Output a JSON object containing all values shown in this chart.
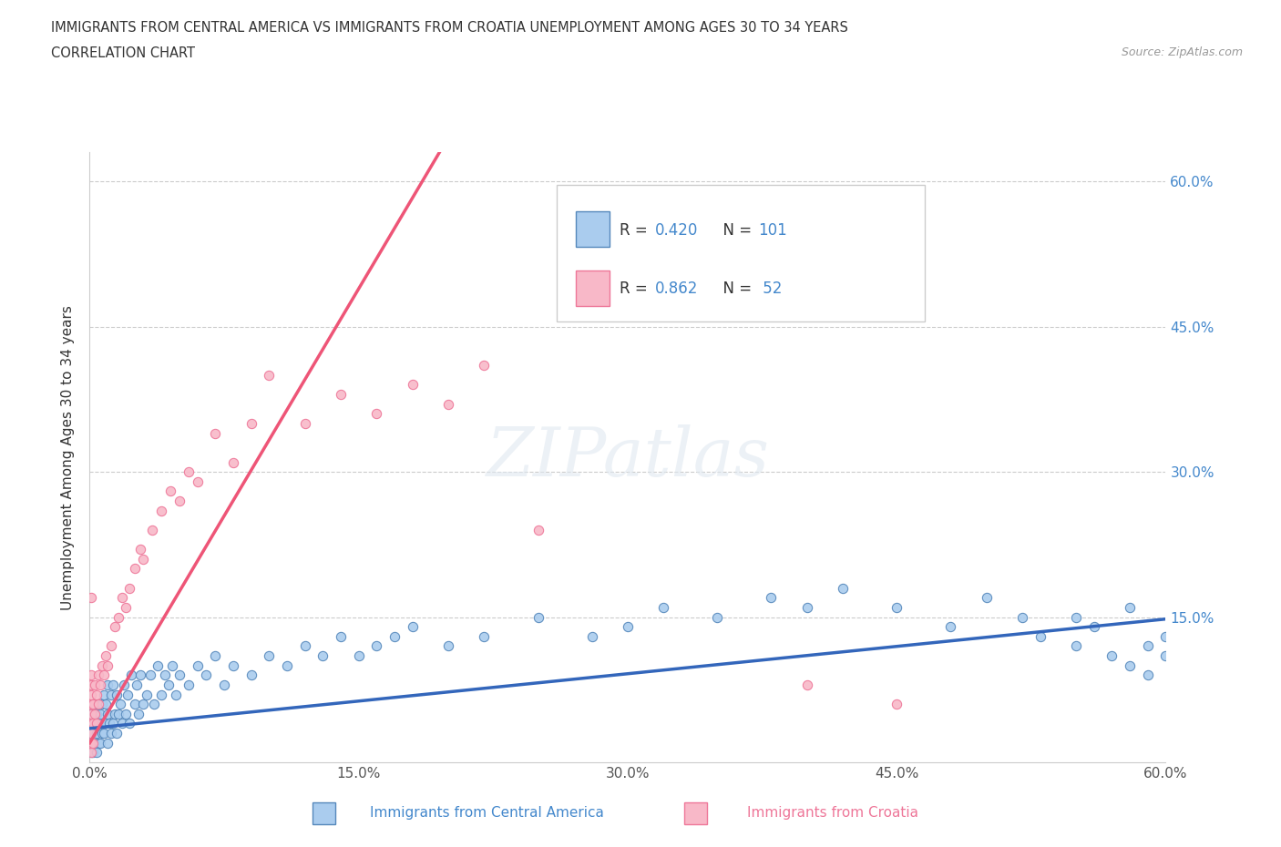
{
  "title_line1": "IMMIGRANTS FROM CENTRAL AMERICA VS IMMIGRANTS FROM CROATIA UNEMPLOYMENT AMONG AGES 30 TO 34 YEARS",
  "title_line2": "CORRELATION CHART",
  "source_text": "Source: ZipAtlas.com",
  "xlabel_blue": "Immigrants from Central America",
  "xlabel_pink": "Immigrants from Croatia",
  "ylabel": "Unemployment Among Ages 30 to 34 years",
  "xmin": 0.0,
  "xmax": 0.6,
  "ymin": 0.0,
  "ymax": 0.63,
  "xticks": [
    0.0,
    0.15,
    0.3,
    0.45,
    0.6
  ],
  "yticks": [
    0.15,
    0.3,
    0.45,
    0.6
  ],
  "xtick_labels": [
    "0.0%",
    "15.0%",
    "30.0%",
    "45.0%",
    "60.0%"
  ],
  "ytick_labels_right": [
    "15.0%",
    "30.0%",
    "45.0%",
    "60.0%"
  ],
  "watermark": "ZIPatlas",
  "color_blue": "#aaccee",
  "color_pink": "#f8b8c8",
  "color_blue_dark": "#5588bb",
  "color_pink_dark": "#ee7799",
  "color_blue_text": "#4488cc",
  "trendline_blue_color": "#3366bb",
  "trendline_pink_color": "#ee5577",
  "blue_x": [
    0.001,
    0.001,
    0.001,
    0.001,
    0.001,
    0.002,
    0.002,
    0.002,
    0.002,
    0.003,
    0.003,
    0.003,
    0.004,
    0.004,
    0.004,
    0.005,
    0.005,
    0.005,
    0.006,
    0.006,
    0.007,
    0.007,
    0.008,
    0.008,
    0.009,
    0.009,
    0.01,
    0.01,
    0.01,
    0.011,
    0.012,
    0.012,
    0.013,
    0.013,
    0.014,
    0.015,
    0.015,
    0.016,
    0.017,
    0.018,
    0.019,
    0.02,
    0.021,
    0.022,
    0.023,
    0.025,
    0.026,
    0.027,
    0.028,
    0.03,
    0.032,
    0.034,
    0.036,
    0.038,
    0.04,
    0.042,
    0.044,
    0.046,
    0.048,
    0.05,
    0.055,
    0.06,
    0.065,
    0.07,
    0.075,
    0.08,
    0.09,
    0.1,
    0.11,
    0.12,
    0.13,
    0.14,
    0.15,
    0.16,
    0.17,
    0.18,
    0.2,
    0.22,
    0.25,
    0.28,
    0.3,
    0.32,
    0.35,
    0.38,
    0.4,
    0.42,
    0.45,
    0.48,
    0.5,
    0.52,
    0.53,
    0.55,
    0.55,
    0.56,
    0.57,
    0.58,
    0.58,
    0.59,
    0.59,
    0.6,
    0.6
  ],
  "blue_y": [
    0.01,
    0.02,
    0.03,
    0.04,
    0.05,
    0.01,
    0.02,
    0.04,
    0.06,
    0.02,
    0.04,
    0.06,
    0.01,
    0.03,
    0.05,
    0.02,
    0.04,
    0.06,
    0.02,
    0.05,
    0.03,
    0.06,
    0.03,
    0.07,
    0.04,
    0.06,
    0.02,
    0.05,
    0.08,
    0.04,
    0.03,
    0.07,
    0.04,
    0.08,
    0.05,
    0.03,
    0.07,
    0.05,
    0.06,
    0.04,
    0.08,
    0.05,
    0.07,
    0.04,
    0.09,
    0.06,
    0.08,
    0.05,
    0.09,
    0.06,
    0.07,
    0.09,
    0.06,
    0.1,
    0.07,
    0.09,
    0.08,
    0.1,
    0.07,
    0.09,
    0.08,
    0.1,
    0.09,
    0.11,
    0.08,
    0.1,
    0.09,
    0.11,
    0.1,
    0.12,
    0.11,
    0.13,
    0.11,
    0.12,
    0.13,
    0.14,
    0.12,
    0.13,
    0.15,
    0.13,
    0.14,
    0.16,
    0.15,
    0.17,
    0.16,
    0.18,
    0.16,
    0.14,
    0.17,
    0.15,
    0.13,
    0.15,
    0.12,
    0.14,
    0.11,
    0.16,
    0.1,
    0.12,
    0.09,
    0.13,
    0.11
  ],
  "pink_x": [
    0.001,
    0.001,
    0.001,
    0.001,
    0.001,
    0.001,
    0.001,
    0.001,
    0.001,
    0.001,
    0.002,
    0.002,
    0.002,
    0.003,
    0.003,
    0.004,
    0.004,
    0.005,
    0.005,
    0.006,
    0.007,
    0.008,
    0.009,
    0.01,
    0.012,
    0.014,
    0.016,
    0.018,
    0.02,
    0.022,
    0.025,
    0.028,
    0.03,
    0.035,
    0.04,
    0.045,
    0.05,
    0.055,
    0.06,
    0.07,
    0.08,
    0.09,
    0.1,
    0.12,
    0.14,
    0.16,
    0.18,
    0.2,
    0.22,
    0.25,
    0.4,
    0.45
  ],
  "pink_y": [
    0.01,
    0.02,
    0.03,
    0.04,
    0.05,
    0.06,
    0.07,
    0.08,
    0.09,
    0.17,
    0.02,
    0.04,
    0.06,
    0.05,
    0.08,
    0.04,
    0.07,
    0.06,
    0.09,
    0.08,
    0.1,
    0.09,
    0.11,
    0.1,
    0.12,
    0.14,
    0.15,
    0.17,
    0.16,
    0.18,
    0.2,
    0.22,
    0.21,
    0.24,
    0.26,
    0.28,
    0.27,
    0.3,
    0.29,
    0.34,
    0.31,
    0.35,
    0.4,
    0.35,
    0.38,
    0.36,
    0.39,
    0.37,
    0.41,
    0.24,
    0.08,
    0.06
  ],
  "trend_blue_x0": 0.0,
  "trend_blue_x1": 0.6,
  "trend_blue_y0": 0.035,
  "trend_blue_y1": 0.148,
  "trend_pink_x0": 0.0,
  "trend_pink_x1": 0.195,
  "trend_pink_y0": 0.02,
  "trend_pink_y1": 0.63
}
